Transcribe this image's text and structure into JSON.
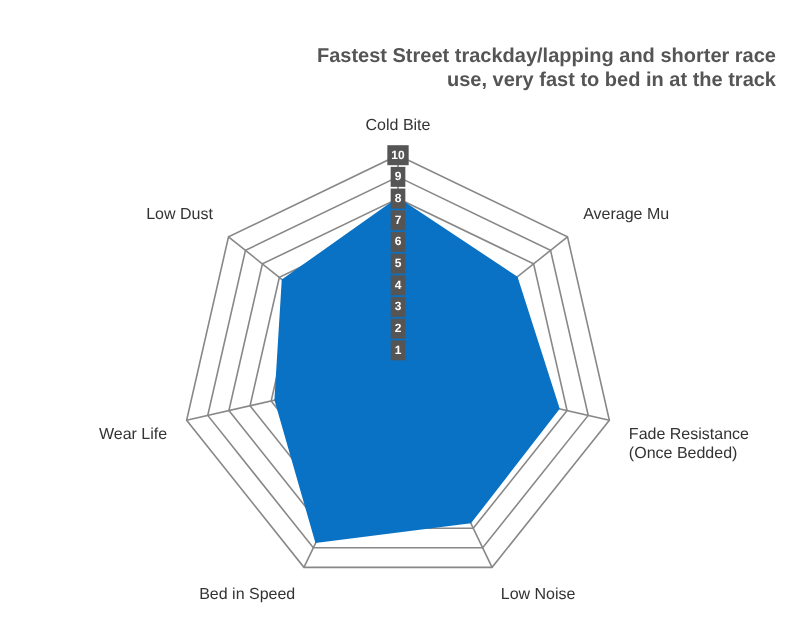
{
  "chart_data": {
    "type": "radar",
    "title": "Fastest Street trackday/lapping and shorter race use, very fast to bed in at the track",
    "categories": [
      "Cold Bite",
      "Average Mu",
      "Fade Resistance (Once Bedded)",
      "Low Noise",
      "Bed in Speed",
      "Wear Life",
      "Low Dust"
    ],
    "series": [
      {
        "color": "#0a72c4",
        "values": [
          8,
          7,
          7.6,
          7.7,
          8.7,
          5.8,
          6.8
        ]
      }
    ],
    "ylim": [
      0,
      10
    ],
    "yticks": [
      1,
      2,
      3,
      4,
      5,
      6,
      7,
      8,
      9,
      10
    ],
    "grid": true,
    "legend": false
  }
}
